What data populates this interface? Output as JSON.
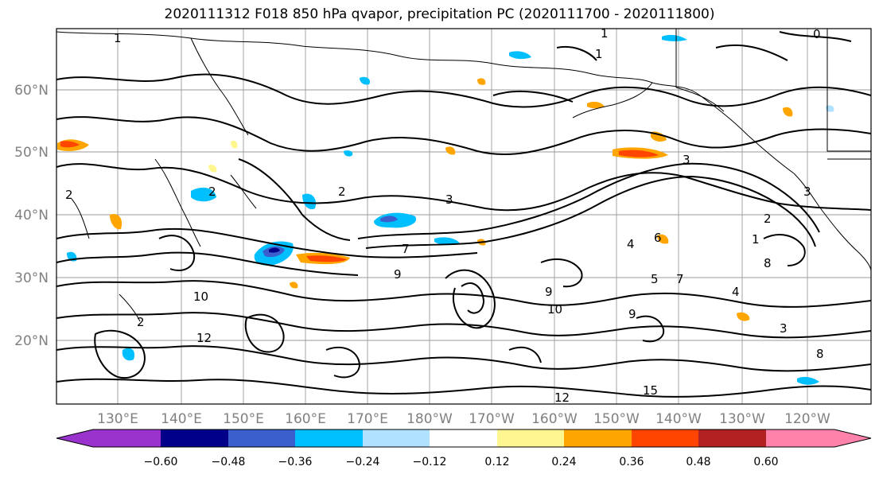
{
  "title": "2020111312 F018 850 hPa qvapor, precipitation PC (2020111700 - 2020111800)",
  "map": {
    "lat_labels": [
      "60°N",
      "50°N",
      "40°N",
      "30°N",
      "20°N"
    ],
    "lon_labels": [
      "130°E",
      "140°E",
      "150°E",
      "160°E",
      "170°E",
      "180°W",
      "170°W",
      "160°W",
      "150°W",
      "140°W",
      "130°W",
      "120°W"
    ],
    "contour_labels": [
      "1",
      "1",
      "1",
      "1",
      "0",
      "2",
      "2",
      "2",
      "2",
      "3",
      "3",
      "3",
      "3",
      "4",
      "4",
      "5",
      "6",
      "7",
      "7",
      "8",
      "9",
      "9",
      "9",
      "10",
      "10",
      "12",
      "12",
      "15",
      "2",
      "8"
    ]
  },
  "colorbar": {
    "colors": [
      "#9a32cd",
      "#00008b",
      "#3a5fcd",
      "#00bfff",
      "#b0e2ff",
      "#ffffff",
      "#fff68f",
      "#ffa500",
      "#ff4500",
      "#b22222",
      "#ff82ab"
    ],
    "tick_labels": [
      "−0.60",
      "−0.48",
      "−0.36",
      "−0.24",
      "−0.12",
      "0.12",
      "0.24",
      "0.36",
      "0.48",
      "0.60"
    ]
  },
  "chart_data": {
    "type": "heatmap",
    "title": "2020111312 F018 850 hPa qvapor, precipitation PC (2020111700 - 2020111800)",
    "projection": "Pacific basin, approx 122°E–112°W, 10°N–70°N",
    "fields": [
      "850 hPa qvapor (black contours)",
      "precipitation PC (filled shading)"
    ],
    "colorbar_levels": [
      -0.6,
      -0.48,
      -0.36,
      -0.24,
      -0.12,
      0.12,
      0.24,
      0.36,
      0.48,
      0.6
    ]
  }
}
